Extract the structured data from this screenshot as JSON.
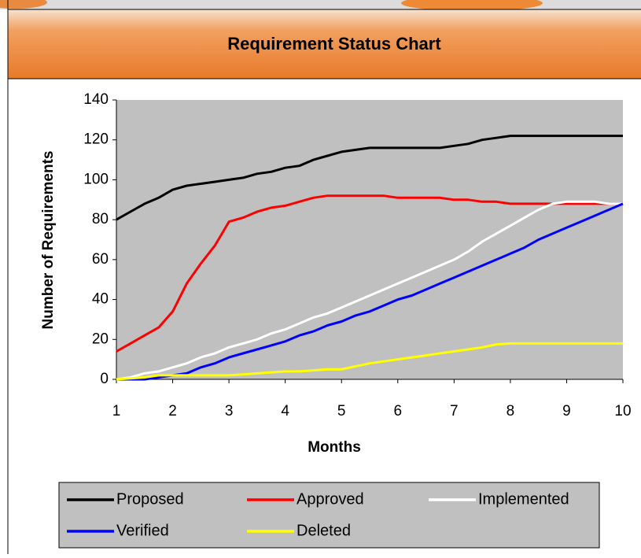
{
  "chart_data": {
    "type": "line",
    "title": "Requirement Status Chart",
    "x_label": "Months",
    "y_label": "Number of Requirements",
    "x": [
      1,
      1.25,
      1.5,
      1.75,
      2,
      2.25,
      2.5,
      2.75,
      3,
      3.25,
      3.5,
      3.75,
      4,
      4.25,
      4.5,
      4.75,
      5,
      5.25,
      5.5,
      5.75,
      6,
      6.25,
      6.5,
      6.75,
      7,
      7.25,
      7.5,
      7.75,
      8,
      8.25,
      8.5,
      8.75,
      9,
      9.25,
      9.5,
      9.75,
      10
    ],
    "series": [
      {
        "name": "Proposed",
        "color": "#000000",
        "values": [
          80,
          84,
          88,
          91,
          95,
          97,
          98,
          99,
          100,
          101,
          103,
          104,
          106,
          107,
          110,
          112,
          114,
          115,
          116,
          116,
          116,
          116,
          116,
          116,
          117,
          118,
          120,
          121,
          122,
          122,
          122,
          122,
          122,
          122,
          122,
          122,
          122
        ]
      },
      {
        "name": "Approved",
        "color": "#ff0000",
        "values": [
          14,
          18,
          22,
          26,
          34,
          48,
          58,
          67,
          79,
          81,
          84,
          86,
          87,
          89,
          91,
          92,
          92,
          92,
          92,
          92,
          91,
          91,
          91,
          91,
          90,
          90,
          89,
          89,
          88,
          88,
          88,
          88,
          88,
          88,
          88,
          88,
          88
        ]
      },
      {
        "name": "Implemented",
        "color": "#ffffff",
        "values": [
          0,
          1,
          3,
          4,
          6,
          8,
          11,
          13,
          16,
          18,
          20,
          23,
          25,
          28,
          31,
          33,
          36,
          39,
          42,
          45,
          48,
          51,
          54,
          57,
          60,
          64,
          69,
          73,
          77,
          81,
          85,
          88,
          89,
          89,
          89,
          88,
          88
        ]
      },
      {
        "name": "Verified",
        "color": "#0000ff",
        "values": [
          0,
          0,
          0,
          1,
          2,
          3,
          6,
          8,
          11,
          13,
          15,
          17,
          19,
          22,
          24,
          27,
          29,
          32,
          34,
          37,
          40,
          42,
          45,
          48,
          51,
          54,
          57,
          60,
          63,
          66,
          70,
          73,
          76,
          79,
          82,
          85,
          88
        ]
      },
      {
        "name": "Deleted",
        "color": "#ffff00",
        "values": [
          0,
          0.5,
          1,
          2,
          2,
          2,
          2,
          2,
          2,
          2.5,
          3,
          3.5,
          4,
          4,
          4.5,
          5,
          5,
          6.5,
          8,
          9,
          10,
          11,
          12,
          13,
          14,
          15,
          16,
          17.5,
          18,
          18,
          18,
          18,
          18,
          18,
          18,
          18,
          18
        ]
      }
    ],
    "xlim": [
      1,
      10
    ],
    "xticks": [
      1,
      2,
      3,
      4,
      5,
      6,
      7,
      8,
      9,
      10
    ],
    "ylim": [
      0,
      140
    ],
    "yticks": [
      0,
      20,
      40,
      60,
      80,
      100,
      120,
      140
    ],
    "plot_background": "#c0c0c0"
  }
}
